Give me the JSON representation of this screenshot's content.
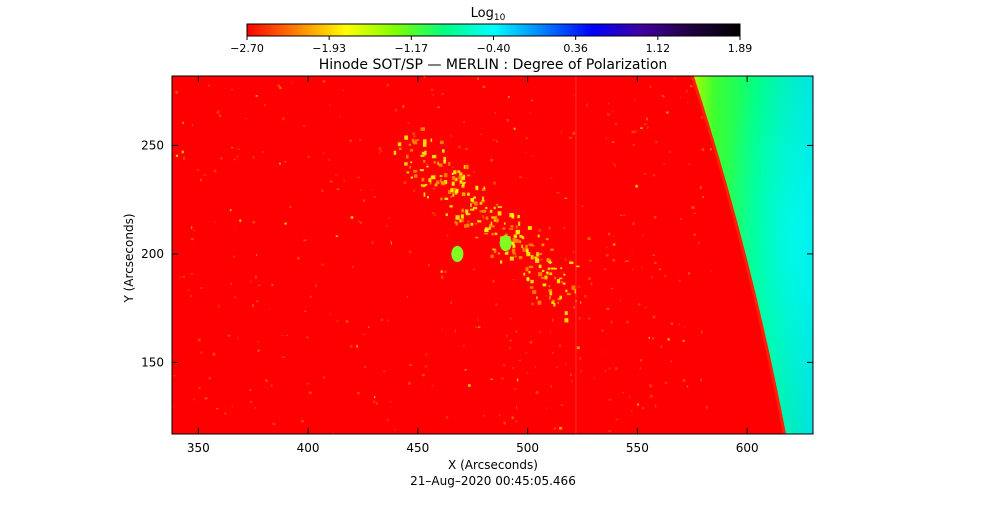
{
  "chart_data": {
    "type": "heatmap",
    "title": "Hinode SOT/SP — MERLIN : Degree of Polarization",
    "xlabel": "X (Arcseconds)",
    "ylabel": "Y (Arcseconds)",
    "timestamp": "21–Aug–2020 00:45:05.466",
    "xlim": [
      338,
      630
    ],
    "ylim": [
      117,
      282
    ],
    "xticks": [
      350,
      400,
      450,
      500,
      550,
      600
    ],
    "yticks": [
      150,
      200,
      250
    ],
    "colorbar": {
      "title_base": "Log",
      "title_sub": "10",
      "range": [
        -2.7,
        1.89
      ],
      "tick_labels": [
        "−2.70",
        "−1.93",
        "−1.17",
        "−0.40",
        "0.36",
        "1.12",
        "1.89"
      ],
      "colors": [
        "#ff0000",
        "#ff8000",
        "#ffff00",
        "#80ff00",
        "#00ff80",
        "#00ffff",
        "#0080ff",
        "#0000ff",
        "#4000a0",
        "#200040",
        "#000000"
      ]
    },
    "features": {
      "limb_x_at_top": 575,
      "limb_x_at_bottom": 617,
      "polarization_blobs": [
        {
          "x": 468,
          "y": 200
        },
        {
          "x": 490,
          "y": 205
        }
      ]
    }
  }
}
